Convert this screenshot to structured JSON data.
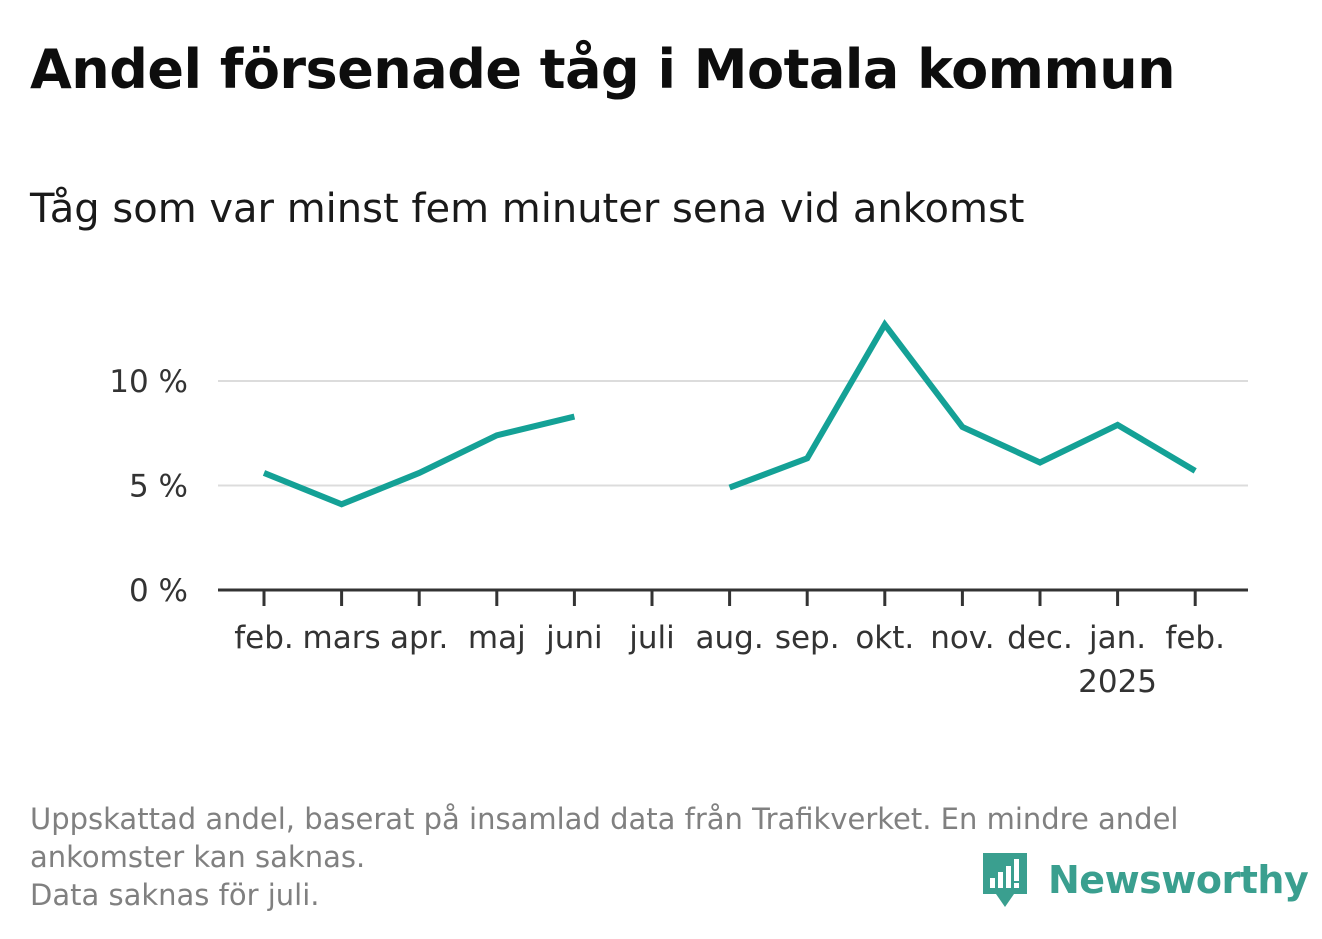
{
  "title": "Andel försenade tåg i Motala kommun",
  "subtitle": "Tåg som var minst fem minuter sena vid ankomst",
  "footnote": {
    "line1": "Uppskattad andel, baserat på insamlad data från Trafikverket. En mindre andel",
    "line2": "ankomster kan saknas.",
    "line3": "Data saknas för juli."
  },
  "brand": {
    "name": "Newsworthy",
    "icon": "newsworthy-logo-icon",
    "color": "#3a9f8f"
  },
  "chart_data": {
    "type": "line",
    "categories": [
      "feb.",
      "mars",
      "apr.",
      "maj",
      "juni",
      "juli",
      "aug.",
      "sep.",
      "okt.",
      "nov.",
      "dec.",
      "jan.",
      "feb."
    ],
    "category_sublabels": [
      "",
      "",
      "",
      "",
      "",
      "",
      "",
      "",
      "",
      "",
      "",
      "2025",
      ""
    ],
    "series": [
      {
        "values": [
          5.6,
          4.1,
          5.6,
          7.4,
          8.3,
          null,
          4.9,
          6.3,
          12.7,
          7.8,
          6.1,
          7.9,
          5.7
        ],
        "color": "#14a196"
      }
    ],
    "y_ticks": [
      0,
      5,
      10
    ],
    "y_tick_labels": [
      "0 %",
      "5 %",
      "10 %"
    ],
    "ylim": [
      0,
      13
    ],
    "grid": true,
    "xlabel": "",
    "ylabel": ""
  }
}
